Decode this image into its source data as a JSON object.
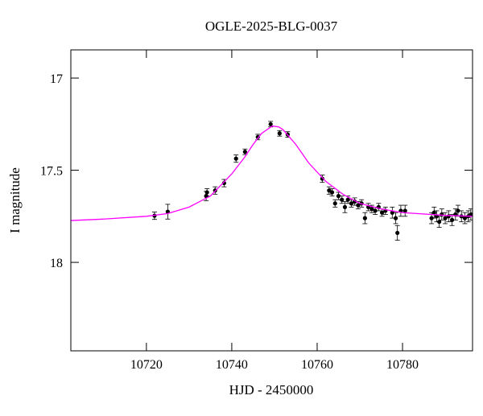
{
  "chart_data": {
    "type": "scatter",
    "title": "OGLE-2025-BLG-0037",
    "xlabel": "HJD - 2450000",
    "ylabel": "I magnitude",
    "xlim": [
      10702.3,
      10796.4
    ],
    "ylim": [
      18.48,
      16.847
    ],
    "xticks": [
      10720,
      10740,
      10760,
      10780
    ],
    "yticks": [
      17,
      17.5,
      18
    ],
    "series": [
      {
        "type": "scatter",
        "color": "#000000",
        "x": [
          10721.9,
          10725.0,
          10734.0,
          10734.2,
          10736.1,
          10738.2,
          10741.0,
          10743.1,
          10746.1,
          10749.1,
          10751.2,
          10753.1,
          10761.2,
          10762.8,
          10763.5,
          10764.2,
          10765.0,
          10765.8,
          10766.5,
          10767.2,
          10768.0,
          10768.8,
          10769.6,
          10770.4,
          10771.2,
          10772.0,
          10772.8,
          10773.6,
          10774.4,
          10775.2,
          10776.0,
          10777.6,
          10778.4,
          10778.8,
          10779.6,
          10780.6,
          10786.8,
          10787.4,
          10788.0,
          10788.6,
          10789.2,
          10790.0,
          10790.8,
          10791.6,
          10792.4,
          10793.0,
          10793.8,
          10794.6,
          10795.4,
          10796.0
        ],
        "values": [
          17.747,
          17.725,
          17.64,
          17.62,
          17.61,
          17.57,
          17.437,
          17.4,
          17.32,
          17.25,
          17.3,
          17.306,
          17.546,
          17.61,
          17.62,
          17.68,
          17.64,
          17.66,
          17.7,
          17.66,
          17.68,
          17.67,
          17.69,
          17.68,
          17.76,
          17.7,
          17.71,
          17.72,
          17.7,
          17.73,
          17.72,
          17.73,
          17.76,
          17.84,
          17.72,
          17.72,
          17.76,
          17.73,
          17.75,
          17.78,
          17.74,
          17.76,
          17.75,
          17.77,
          17.74,
          17.72,
          17.75,
          17.76,
          17.75,
          17.74
        ],
        "errors": [
          0.02,
          0.04,
          0.025,
          0.02,
          0.02,
          0.02,
          0.02,
          0.015,
          0.015,
          0.015,
          0.015,
          0.015,
          0.02,
          0.02,
          0.02,
          0.02,
          0.02,
          0.02,
          0.03,
          0.02,
          0.02,
          0.02,
          0.02,
          0.02,
          0.03,
          0.02,
          0.02,
          0.02,
          0.02,
          0.02,
          0.02,
          0.03,
          0.03,
          0.04,
          0.03,
          0.03,
          0.03,
          0.03,
          0.03,
          0.03,
          0.03,
          0.03,
          0.03,
          0.03,
          0.03,
          0.03,
          0.03,
          0.03,
          0.03,
          0.03
        ]
      },
      {
        "type": "line",
        "color": "#ff00ff",
        "x": [
          10702.3,
          10710,
          10720,
          10725,
          10730,
          10735,
          10740,
          10743,
          10745,
          10747,
          10749.5,
          10751,
          10752,
          10755,
          10758,
          10762,
          10766,
          10770,
          10775,
          10780,
          10790,
          10796.4
        ],
        "values": [
          17.773,
          17.765,
          17.75,
          17.735,
          17.7,
          17.64,
          17.52,
          17.43,
          17.36,
          17.3,
          17.26,
          17.265,
          17.28,
          17.36,
          17.46,
          17.56,
          17.63,
          17.68,
          17.71,
          17.73,
          17.745,
          17.75
        ]
      }
    ]
  }
}
